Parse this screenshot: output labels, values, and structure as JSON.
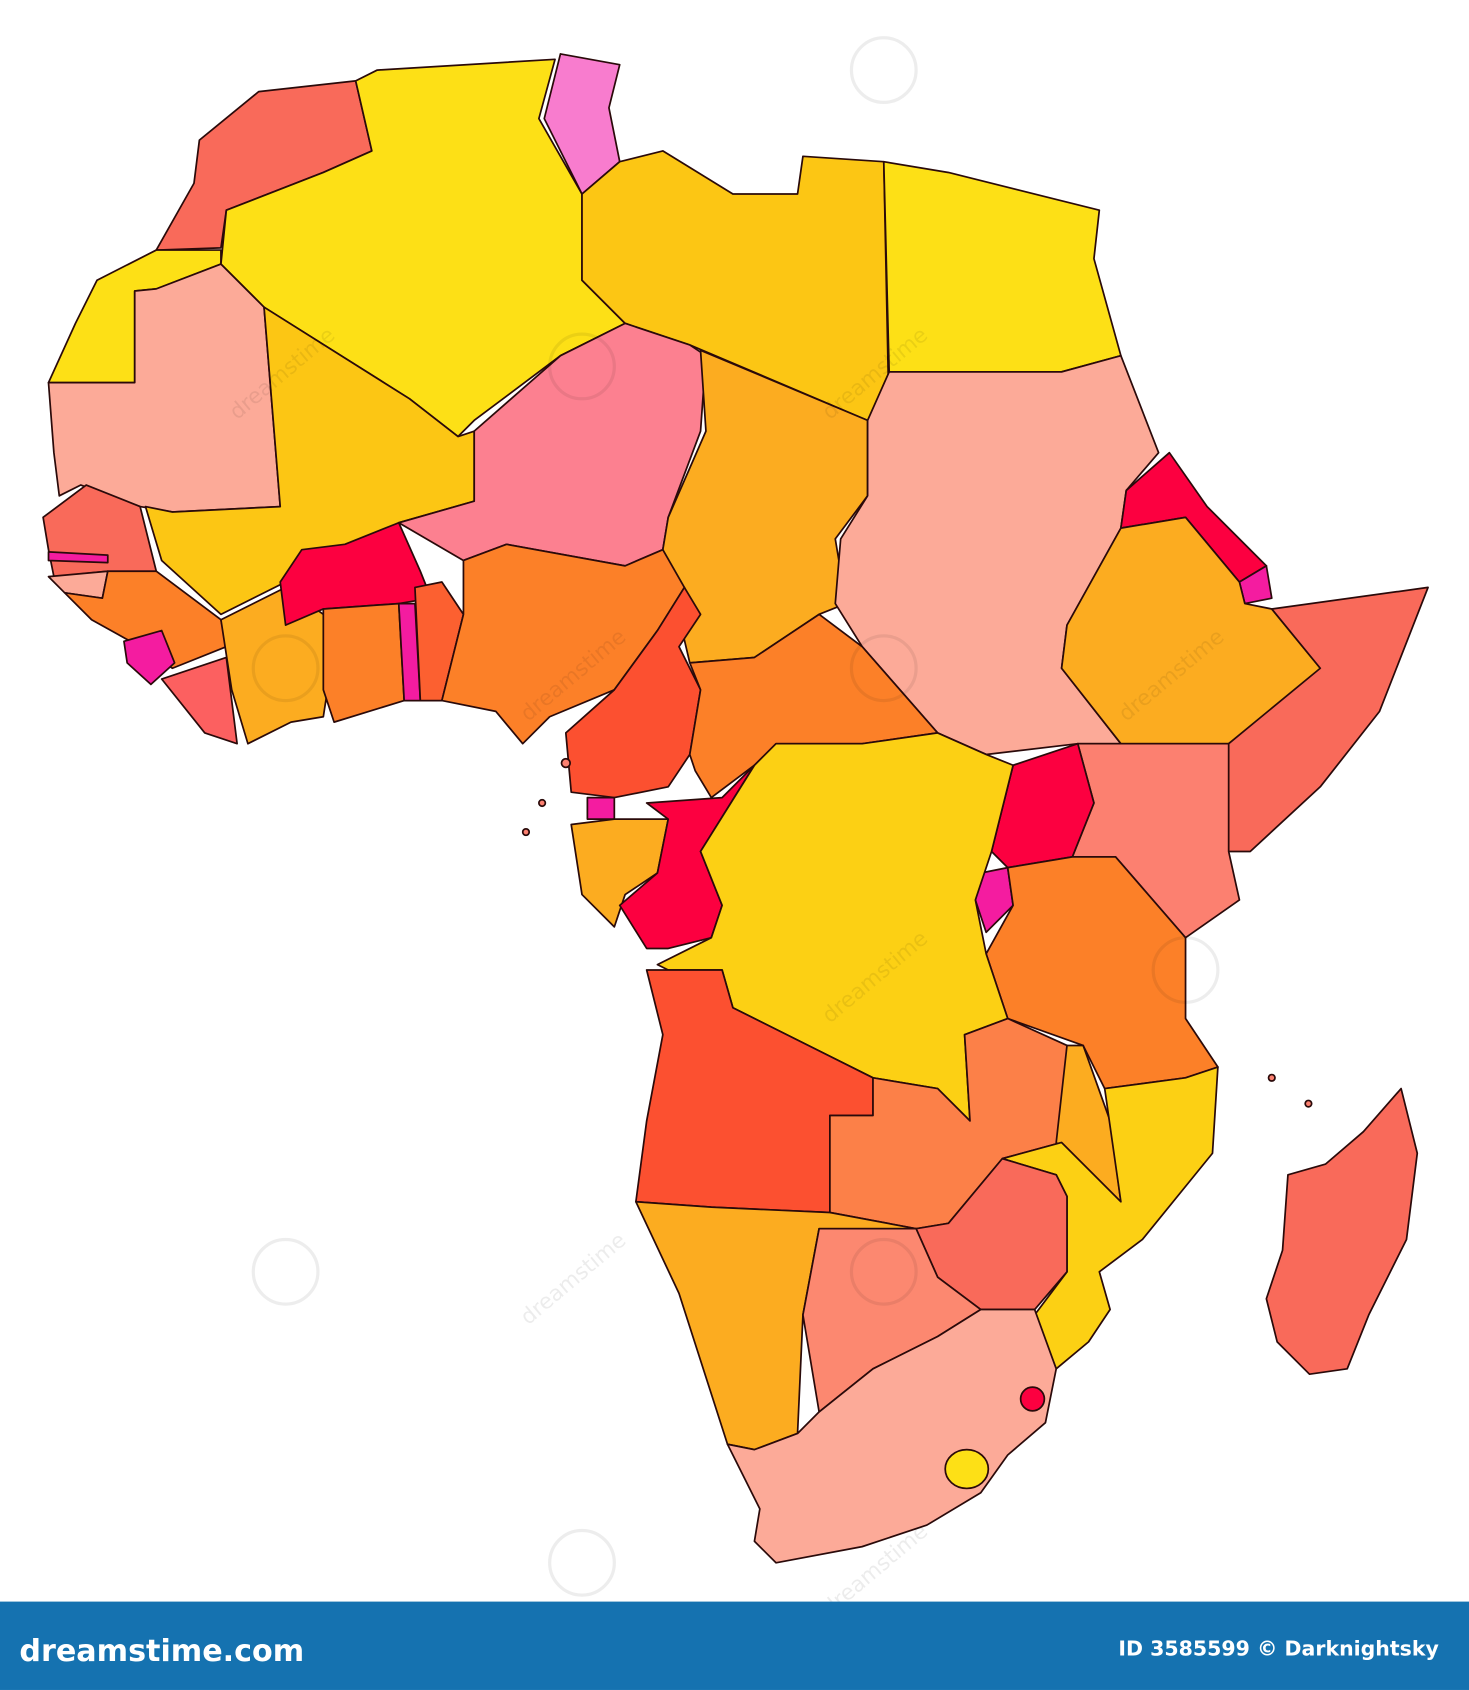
{
  "watermark": "dreamstime",
  "footer": {
    "brand": "dreamstime.com",
    "credit": "ID 3585599 © Darknightsky"
  }
}
